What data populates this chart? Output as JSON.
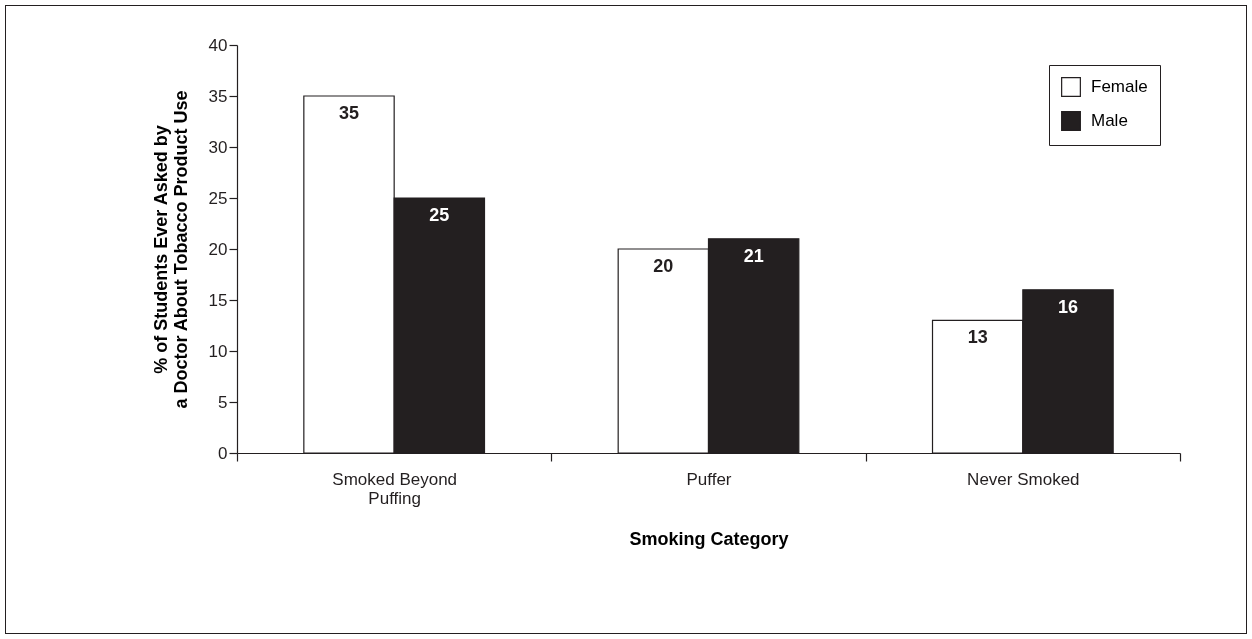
{
  "chart_data": {
    "type": "bar",
    "xlabel": "Smoking Category",
    "ylabel": "% of Students Ever Asked by\na Doctor About Tobacco Product Use",
    "categories": [
      "Smoked Beyond\nPuffing",
      "Puffer",
      "Never Smoked"
    ],
    "series": [
      {
        "name": "Female",
        "color": "#ffffff",
        "values": [
          35,
          20,
          13
        ]
      },
      {
        "name": "Male",
        "color": "#231f20",
        "values": [
          25,
          21,
          16
        ]
      }
    ],
    "ylim": [
      0,
      40
    ],
    "yticks": [
      0,
      5,
      10,
      15,
      20,
      25,
      30,
      35,
      40
    ],
    "grid": false,
    "legend": "top right",
    "data_labels": true
  }
}
